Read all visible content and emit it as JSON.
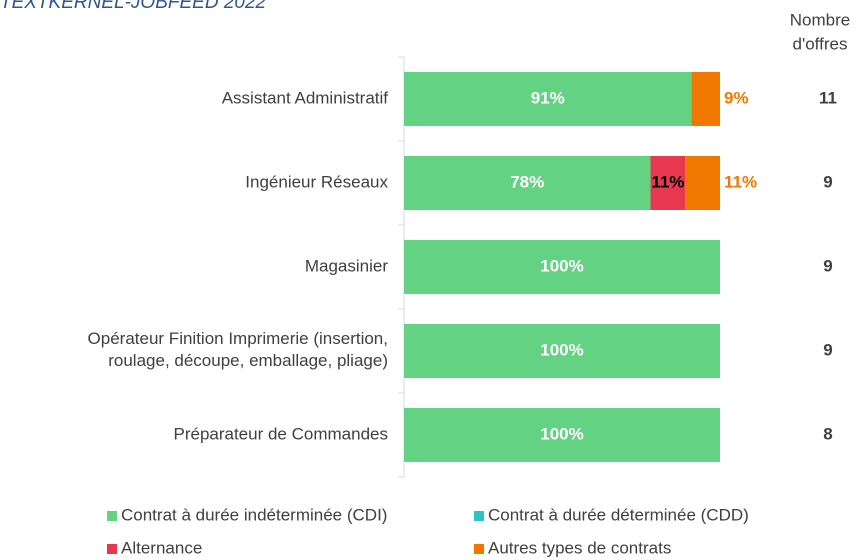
{
  "chart_data": {
    "type": "stacked_bar_horizontal",
    "title": "TEXTKERNEL-JOBFEED 2022",
    "categories": [
      "Assistant Administratif",
      "Ingénieur Réseaux",
      "Magasinier",
      "Opérateur Finition Imprimerie (insertion,\nroulage, découpe, emballage, pliage)",
      "Préparateur de Commandes"
    ],
    "series": [
      {
        "name": "Contrat à durée indéterminée (CDI)",
        "color": "#63d383",
        "values": [
          91,
          78,
          100,
          100,
          100
        ],
        "value_labels": [
          "91%",
          "78%",
          "100%",
          "100%",
          "100%"
        ],
        "label_color": "#ffffff",
        "label_position": "center"
      },
      {
        "name": "Contrat à durée déterminée (CDD)",
        "color": "#2ec4c4",
        "values": [
          0,
          0,
          0,
          0,
          0
        ],
        "value_labels": [
          null,
          null,
          null,
          null,
          null
        ],
        "label_color": "#2ec4c4",
        "label_position": "center"
      },
      {
        "name": "Alternance",
        "color": "#e8384f",
        "values": [
          0,
          11,
          0,
          0,
          0
        ],
        "value_labels": [
          null,
          "11%",
          null,
          null,
          null
        ],
        "label_color": "#000000",
        "label_position": "center"
      },
      {
        "name": "Autres types de contrats",
        "color": "#f07800",
        "values": [
          9,
          11,
          0,
          0,
          0
        ],
        "value_labels": [
          "9%",
          "11%",
          null,
          null,
          null
        ],
        "label_color": "#f07800",
        "label_position": "outside"
      }
    ],
    "xlim": [
      0,
      100
    ],
    "count_header": [
      "Nombre",
      "d'offres"
    ],
    "counts": [
      11,
      9,
      9,
      9,
      8
    ]
  }
}
